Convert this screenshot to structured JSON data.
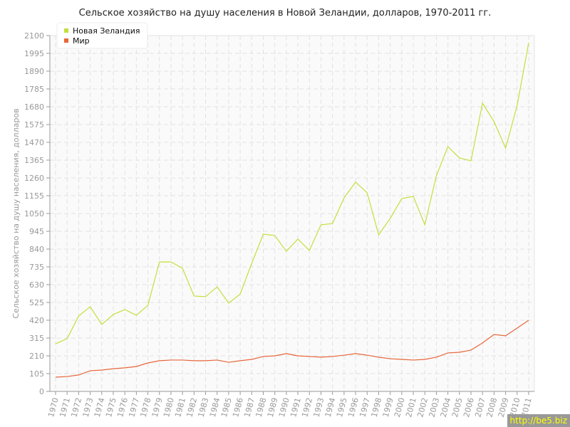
{
  "chart_data": {
    "type": "line",
    "title": "Сельское хозяйство на душу населения в Новой Зеландии, долларов, 1970-2011 гг.",
    "xlabel": "",
    "ylabel": "Сельское хозяйство на душу населения, долларов",
    "ylim": [
      0,
      2100
    ],
    "yticks": [
      0,
      105,
      210,
      315,
      420,
      525,
      630,
      735,
      840,
      945,
      1050,
      1155,
      1260,
      1365,
      1470,
      1575,
      1680,
      1785,
      1890,
      1995,
      2100
    ],
    "grid": true,
    "legend_position": "top-left",
    "x": [
      1970,
      1971,
      1972,
      1973,
      1974,
      1975,
      1976,
      1977,
      1978,
      1979,
      1980,
      1981,
      1982,
      1983,
      1984,
      1985,
      1986,
      1987,
      1988,
      1989,
      1990,
      1991,
      1992,
      1993,
      1994,
      1995,
      1996,
      1997,
      1998,
      1999,
      2000,
      2001,
      2002,
      2003,
      2004,
      2005,
      2006,
      2007,
      2008,
      2009,
      2010,
      2011
    ],
    "series": [
      {
        "name": "Новая Зеландия",
        "color": "#c4df3c",
        "values": [
          281,
          311,
          445,
          500,
          395,
          454,
          483,
          449,
          508,
          764,
          764,
          727,
          563,
          559,
          617,
          521,
          575,
          756,
          928,
          920,
          827,
          899,
          832,
          983,
          991,
          1142,
          1235,
          1172,
          924,
          1021,
          1138,
          1151,
          983,
          1273,
          1445,
          1378,
          1361,
          1701,
          1592,
          1436,
          1688,
          2058
        ]
      },
      {
        "name": "Мир",
        "color": "#e8663a",
        "values": [
          84,
          88,
          97,
          122,
          126,
          134,
          139,
          147,
          168,
          181,
          185,
          185,
          181,
          181,
          185,
          172,
          181,
          189,
          206,
          210,
          223,
          210,
          206,
          202,
          206,
          214,
          223,
          214,
          202,
          193,
          189,
          185,
          189,
          202,
          227,
          231,
          244,
          286,
          336,
          328,
          374,
          420
        ]
      }
    ]
  },
  "watermark": "http://be5.biz"
}
